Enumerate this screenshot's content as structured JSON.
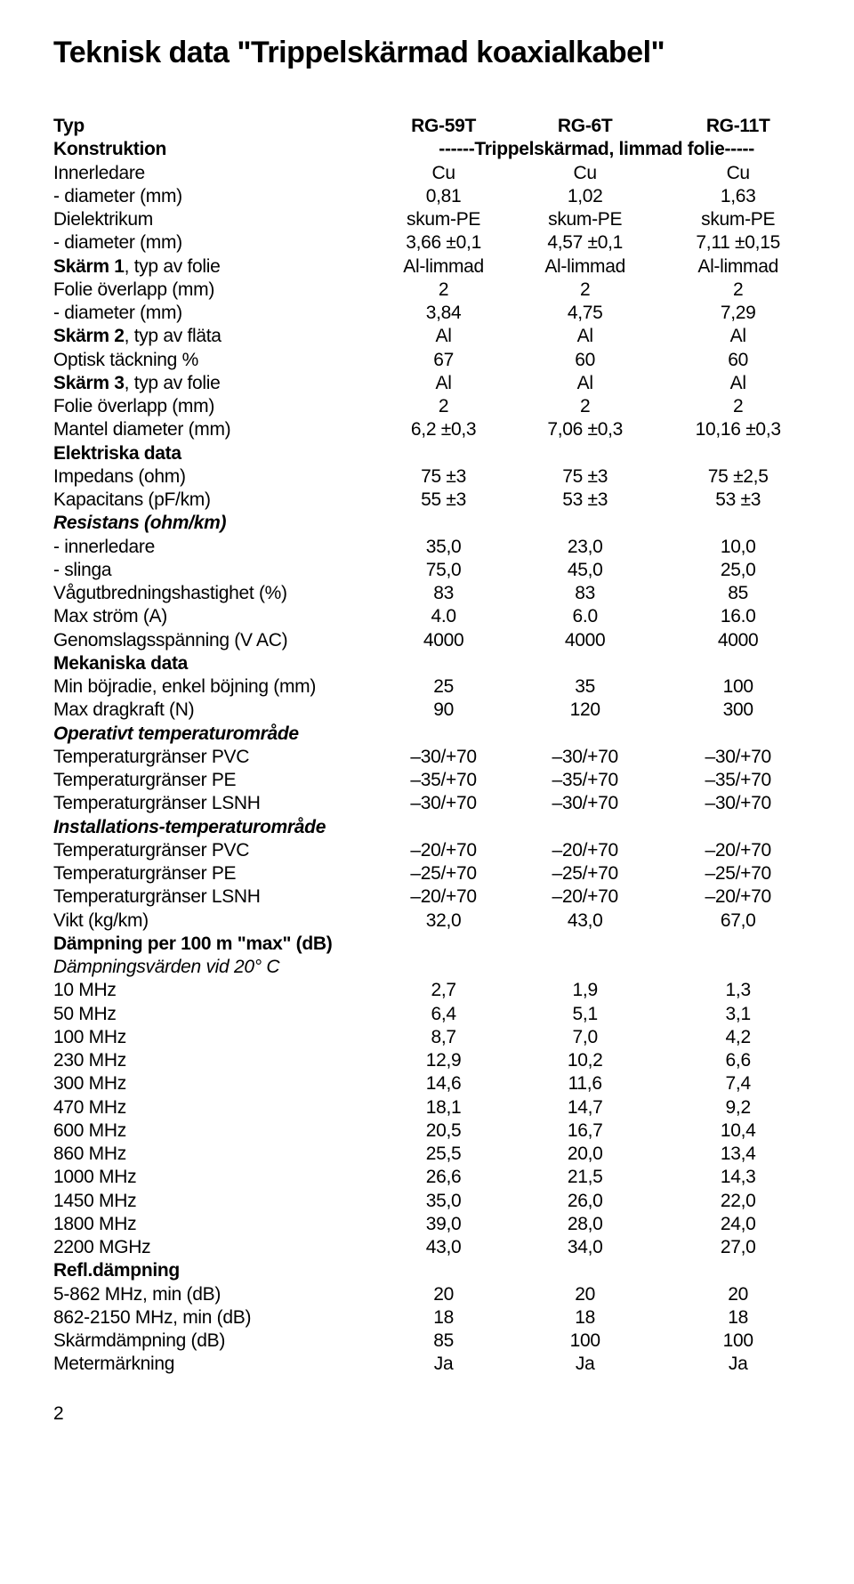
{
  "title": "Teknisk data \"Trippelskärmad koaxialkabel\"",
  "pageNumber": "2",
  "header": {
    "label": "Typ",
    "c1": "RG-59T",
    "c2": "RG-6T",
    "c3": "RG-11T"
  },
  "construction": {
    "label": "Konstruktion",
    "span": "------Trippelskärmad, limmad folie-----"
  },
  "rows": [
    {
      "label": "Innerledare",
      "c1": "Cu",
      "c2": "Cu",
      "c3": "Cu"
    },
    {
      "label": "- diameter (mm)",
      "c1": "0,81",
      "c2": "1,02",
      "c3": "1,63"
    },
    {
      "label": "Dielektrikum",
      "c1": "skum-PE",
      "c2": "skum-PE",
      "c3": "skum-PE"
    },
    {
      "label": "- diameter (mm)",
      "c1": "3,66 ±0,1",
      "c2": "4,57 ±0,1",
      "c3": "7,11 ±0,15"
    },
    {
      "bold": true,
      "label": "Skärm 1",
      "labelExtra": ", typ av folie",
      "c1": "Al-limmad",
      "c2": "Al-limmad",
      "c3": "Al-limmad"
    },
    {
      "label": "Folie överlapp (mm)",
      "c1": "2",
      "c2": "2",
      "c3": "2"
    },
    {
      "label": "- diameter (mm)",
      "c1": "3,84",
      "c2": "4,75",
      "c3": "7,29"
    },
    {
      "bold": true,
      "label": "Skärm 2",
      "labelExtra": ", typ av fläta",
      "c1": "Al",
      "c2": "Al",
      "c3": "Al"
    },
    {
      "label": "Optisk täckning %",
      "c1": "67",
      "c2": "60",
      "c3": "60"
    },
    {
      "bold": true,
      "label": "Skärm 3",
      "labelExtra": ", typ av folie",
      "c1": "Al",
      "c2": "Al",
      "c3": "Al"
    },
    {
      "label": "Folie överlapp (mm)",
      "c1": "2",
      "c2": "2",
      "c3": "2"
    },
    {
      "label": "Mantel diameter (mm)",
      "c1": "6,2 ±0,3",
      "c2": "7,06 ±0,3",
      "c3": "10,16 ±0,3"
    },
    {
      "bold": true,
      "label": "Elektriska data"
    },
    {
      "label": "Impedans (ohm)",
      "c1": "75 ±3",
      "c2": "75 ±3",
      "c3": "75 ±2,5"
    },
    {
      "label": "Kapacitans (pF/km)",
      "c1": "55 ±3",
      "c2": "53 ±3",
      "c3": "53 ±3"
    },
    {
      "boldItalic": true,
      "label": "Resistans (ohm/km)"
    },
    {
      "label": "- innerledare",
      "c1": "35,0",
      "c2": "23,0",
      "c3": "10,0"
    },
    {
      "label": "- slinga",
      "c1": "75,0",
      "c2": "45,0",
      "c3": "25,0"
    },
    {
      "label": "Vågutbredningshastighet (%)",
      "c1": "83",
      "c2": "83",
      "c3": "85"
    },
    {
      "label": "Max ström (A)",
      "c1": "4.0",
      "c2": "6.0",
      "c3": "16.0"
    },
    {
      "label": "Genomslagsspänning (V AC)",
      "c1": "4000",
      "c2": "4000",
      "c3": "4000"
    },
    {
      "bold": true,
      "label": "Mekaniska data"
    },
    {
      "label": "Min böjradie, enkel böjning (mm)",
      "c1": "25",
      "c2": "35",
      "c3": "100"
    },
    {
      "label": "Max dragkraft (N)",
      "c1": "90",
      "c2": "120",
      "c3": "300"
    },
    {
      "boldItalic": true,
      "label": "Operativt temperaturområde"
    },
    {
      "label": "Temperaturgränser PVC",
      "c1": "–30/+70",
      "c2": "–30/+70",
      "c3": "–30/+70"
    },
    {
      "label": "Temperaturgränser PE",
      "c1": "–35/+70",
      "c2": "–35/+70",
      "c3": "–35/+70"
    },
    {
      "label": "Temperaturgränser LSNH",
      "c1": "–30/+70",
      "c2": "–30/+70",
      "c3": "–30/+70"
    },
    {
      "boldItalic": true,
      "label": "Installations-temperaturområde"
    },
    {
      "label": "Temperaturgränser PVC",
      "c1": "–20/+70",
      "c2": "–20/+70",
      "c3": "–20/+70"
    },
    {
      "label": "Temperaturgränser PE",
      "c1": "–25/+70",
      "c2": "–25/+70",
      "c3": "–25/+70"
    },
    {
      "label": "Temperaturgränser LSNH",
      "c1": "–20/+70",
      "c2": "–20/+70",
      "c3": "–20/+70"
    },
    {
      "label": "Vikt (kg/km)",
      "c1": "32,0",
      "c2": "43,0",
      "c3": "67,0"
    },
    {
      "bold": true,
      "label": "Dämpning per 100 m \"max\" (dB)"
    },
    {
      "italic": true,
      "label": "Dämpningsvärden vid 20° C"
    },
    {
      "label": "10 MHz",
      "c1": "2,7",
      "c2": "1,9",
      "c3": "1,3"
    },
    {
      "label": "50 MHz",
      "c1": "6,4",
      "c2": "5,1",
      "c3": "3,1"
    },
    {
      "label": "100 MHz",
      "c1": "8,7",
      "c2": "7,0",
      "c3": "4,2"
    },
    {
      "label": "230 MHz",
      "c1": "12,9",
      "c2": "10,2",
      "c3": "6,6"
    },
    {
      "label": "300 MHz",
      "c1": "14,6",
      "c2": "11,6",
      "c3": "7,4"
    },
    {
      "label": "470 MHz",
      "c1": "18,1",
      "c2": "14,7",
      "c3": "9,2"
    },
    {
      "label": "600 MHz",
      "c1": "20,5",
      "c2": "16,7",
      "c3": "10,4"
    },
    {
      "label": "860 MHz",
      "c1": "25,5",
      "c2": "20,0",
      "c3": "13,4"
    },
    {
      "label": "1000 MHz",
      "c1": "26,6",
      "c2": "21,5",
      "c3": "14,3"
    },
    {
      "label": "1450 MHz",
      "c1": "35,0",
      "c2": "26,0",
      "c3": "22,0"
    },
    {
      "label": "1800 MHz",
      "c1": "39,0",
      "c2": "28,0",
      "c3": "24,0"
    },
    {
      "label": "2200 MGHz",
      "c1": "43,0",
      "c2": "34,0",
      "c3": "27,0"
    },
    {
      "bold": true,
      "label": "Refl.dämpning"
    },
    {
      "label": "5-862 MHz, min (dB)",
      "c1": "20",
      "c2": "20",
      "c3": "20"
    },
    {
      "label": "862-2150 MHz, min (dB)",
      "c1": "18",
      "c2": "18",
      "c3": "18"
    },
    {
      "label": "Skärmdämpning (dB)",
      "c1": "85",
      "c2": "100",
      "c3": "100"
    },
    {
      "label": "Metermärkning",
      "c1": "Ja",
      "c2": "Ja",
      "c3": "Ja"
    }
  ]
}
